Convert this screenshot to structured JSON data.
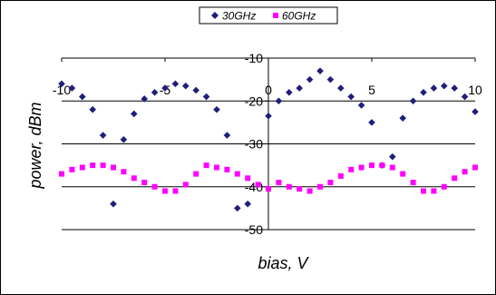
{
  "chart_data": {
    "type": "scatter",
    "xlabel": "bias, V",
    "ylabel": "power, dBm",
    "xlim": [
      -10,
      10
    ],
    "ylim": [
      -50,
      -10
    ],
    "x_ticks": [
      -10,
      -5,
      0,
      5,
      10
    ],
    "y_ticks": [
      -10,
      -20,
      -30,
      -40,
      -50
    ],
    "grid": "horizontal",
    "legend_position": "top-center",
    "series": [
      {
        "name": "30GHz",
        "marker": "diamond",
        "color": "#1F1F7A",
        "x": [
          -10,
          -9.5,
          -9,
          -8.5,
          -8,
          -7.5,
          -7,
          -6.5,
          -6,
          -5.5,
          -5,
          -4.5,
          -4,
          -3.5,
          -3,
          -2.5,
          -2,
          -1.5,
          -1,
          0,
          0.5,
          1,
          1.5,
          2,
          2.5,
          3,
          3.5,
          4,
          4.5,
          5,
          5.5,
          6,
          6.5,
          7,
          7.5,
          8,
          8.5,
          9,
          9.5,
          10
        ],
        "y": [
          -16,
          -17,
          -19,
          -22,
          -28,
          -44,
          -29,
          -23,
          -19.5,
          -18,
          -17,
          -16,
          -16.5,
          -17.5,
          -19,
          -22,
          -28,
          -45,
          -44,
          -23.5,
          -20,
          -18,
          -17,
          -15,
          -13,
          -15,
          -17,
          -19,
          -21,
          -25,
          -35,
          -33,
          -24,
          -20,
          -18,
          -17,
          -16.5,
          -17,
          -19,
          -22.5
        ]
      },
      {
        "name": "60GHz",
        "marker": "square",
        "color": "#FF00FF",
        "x": [
          -10,
          -9.5,
          -9,
          -8.5,
          -8,
          -7.5,
          -7,
          -6.5,
          -6,
          -5.5,
          -5,
          -4.5,
          -4,
          -3.5,
          -3,
          -2.5,
          -2,
          -1.5,
          -1,
          -0.5,
          0,
          0.5,
          1,
          1.5,
          2,
          2.5,
          3,
          3.5,
          4,
          4.5,
          5,
          5.5,
          6,
          6.5,
          7,
          7.5,
          8,
          8.5,
          9,
          9.5,
          10
        ],
        "y": [
          -37,
          -36,
          -35.5,
          -35,
          -35,
          -35.5,
          -36.5,
          -38,
          -39,
          -40,
          -41,
          -41,
          -39.5,
          -37,
          -35,
          -35.5,
          -36,
          -37,
          -38,
          -39.5,
          -40.5,
          -39,
          -40,
          -40.5,
          -41,
          -40,
          -39,
          -37.5,
          -36,
          -35.5,
          -35,
          -35,
          -35.5,
          -37,
          -39,
          -41,
          -41,
          -40,
          -38,
          -36.5,
          -35.5
        ]
      }
    ]
  }
}
